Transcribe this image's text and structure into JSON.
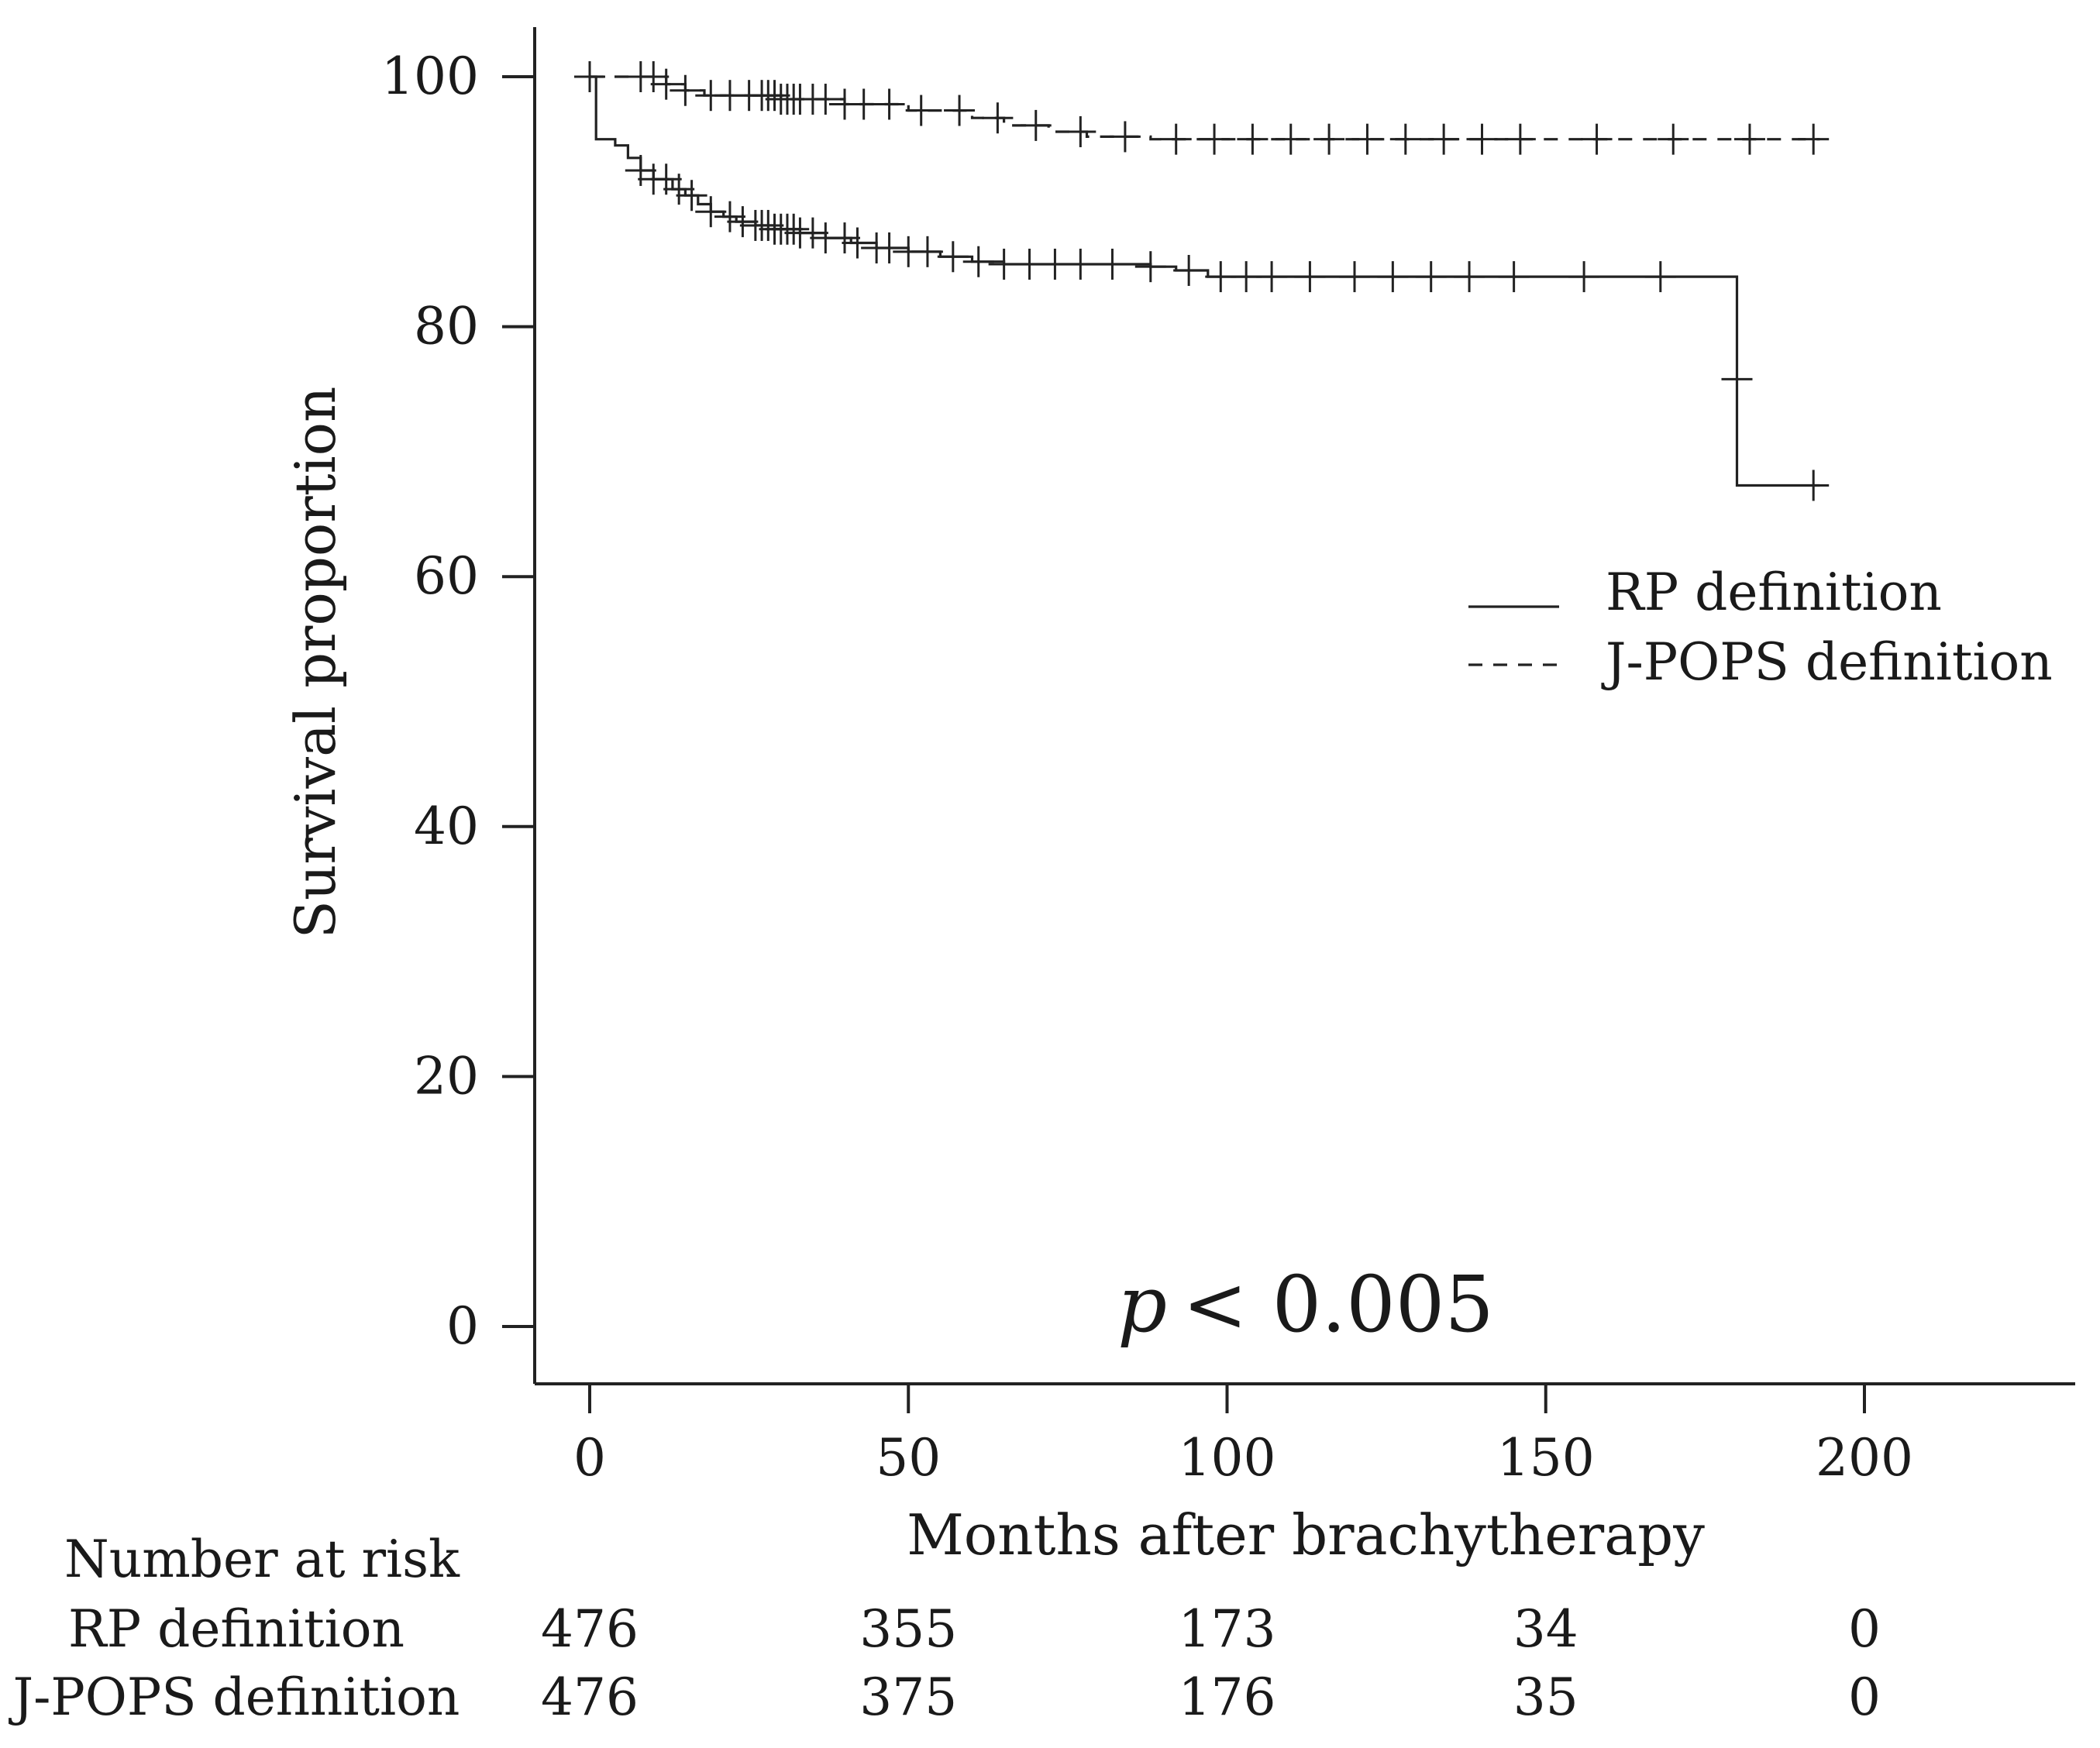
{
  "chart_data": {
    "type": "line",
    "subtype": "kaplan-meier",
    "title": "",
    "xlabel": "Months after brachytherapy",
    "ylabel": "Survival proportion",
    "xlim": [
      -9,
      232
    ],
    "ylim": [
      -8,
      108
    ],
    "x_ticks": [
      0,
      50,
      100,
      150,
      200
    ],
    "y_ticks": [
      0,
      20,
      40,
      60,
      80,
      100
    ],
    "annotation": {
      "italic": "p",
      "text": "< 0.005",
      "x": 113,
      "y": 1.5
    },
    "legend_position": "right",
    "series": [
      {
        "name": "RP definition",
        "style": "solid",
        "steps": [
          [
            0,
            100
          ],
          [
            1,
            95
          ],
          [
            4,
            94.5
          ],
          [
            6,
            93.5
          ],
          [
            8,
            92.5
          ],
          [
            10,
            91.8
          ],
          [
            13,
            91
          ],
          [
            15,
            90.5
          ],
          [
            17,
            89.8
          ],
          [
            19,
            89.2
          ],
          [
            21,
            88.8
          ],
          [
            23,
            88.4
          ],
          [
            26,
            88.1
          ],
          [
            29,
            87.8
          ],
          [
            33,
            87.5
          ],
          [
            37,
            87.1
          ],
          [
            41,
            86.7
          ],
          [
            45,
            86.3
          ],
          [
            50,
            86
          ],
          [
            55,
            85.6
          ],
          [
            60,
            85.2
          ],
          [
            65,
            85
          ],
          [
            88,
            84.8
          ],
          [
            92,
            84.5
          ],
          [
            97,
            84
          ],
          [
            180,
            84
          ],
          [
            180,
            67.3
          ],
          [
            193,
            67.3
          ]
        ],
        "censor_x": [
          0,
          8,
          10,
          12,
          14,
          16,
          19,
          22,
          24,
          26,
          27,
          28,
          29,
          30,
          31,
          32,
          33,
          35,
          37,
          40,
          42,
          45,
          47,
          50,
          53,
          57,
          61,
          65,
          69,
          73,
          77,
          82,
          88,
          94,
          99,
          103,
          107,
          113,
          120,
          126,
          132,
          138,
          145,
          156,
          168
        ],
        "censor_on_drop": [
          [
            180,
            75.8
          ],
          [
            192,
            67.3
          ]
        ]
      },
      {
        "name": "J-POPS definition",
        "style": "dashed",
        "steps": [
          [
            0,
            100
          ],
          [
            9,
            100
          ],
          [
            12,
            99.4
          ],
          [
            15,
            98.9
          ],
          [
            18,
            98.5
          ],
          [
            30,
            98.2
          ],
          [
            40,
            97.8
          ],
          [
            50,
            97.3
          ],
          [
            60,
            96.7
          ],
          [
            65,
            96.1
          ],
          [
            72,
            95.6
          ],
          [
            78,
            95.2
          ],
          [
            88,
            95
          ],
          [
            193,
            95
          ]
        ],
        "censor_x": [
          0,
          8,
          10,
          12,
          15,
          19,
          22,
          25,
          27,
          28,
          29,
          30,
          31,
          32,
          33,
          35,
          37,
          40,
          43,
          47,
          52,
          58,
          64,
          70,
          77,
          84,
          92,
          98,
          104,
          110,
          116,
          122,
          128,
          134,
          140,
          146,
          158,
          170,
          182,
          192
        ]
      }
    ],
    "risk_table": {
      "header": "Number at risk",
      "times": [
        0,
        50,
        100,
        150,
        200
      ],
      "rows": [
        {
          "label": "RP definition",
          "values": [
            "476",
            "355",
            "173",
            "34",
            "0"
          ]
        },
        {
          "label": "J-POPS definition",
          "values": [
            "476",
            "375",
            "176",
            "35",
            "0"
          ]
        }
      ]
    }
  }
}
